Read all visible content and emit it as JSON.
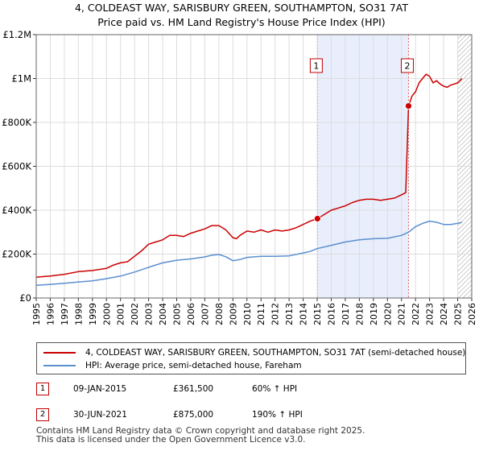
{
  "title": "4, COLDEAST WAY, SARISBURY GREEN, SOUTHAMPTON, SO31 7AT",
  "subtitle": "Price paid vs. HM Land Registry's House Price Index (HPI)",
  "colors": {
    "property": "#cc0000",
    "hpi": "#5b8fcf",
    "highlight": "#e8eefb",
    "marker_border": "#c00000",
    "grid": "#dddddd"
  },
  "legend": {
    "property_label": "4, COLDEAST WAY, SARISBURY GREEN, SOUTHAMPTON, SO31 7AT (semi-detached house)",
    "hpi_label": "HPI: Average price, semi-detached house, Fareham"
  },
  "sales": [
    {
      "id": "1",
      "date": "09-JAN-2015",
      "price": "£361,500",
      "hpi_change": "60% ↑ HPI"
    },
    {
      "id": "2",
      "date": "30-JUN-2021",
      "price": "£875,000",
      "hpi_change": "190% ↑ HPI"
    }
  ],
  "footer": {
    "line1": "Contains HM Land Registry data © Crown copyright and database right 2025.",
    "line2": "This data is licensed under the Open Government Licence v3.0."
  },
  "chart_data": {
    "type": "line",
    "xlim": [
      1995,
      2026
    ],
    "ylim": [
      0,
      1200000
    ],
    "x_ticks": [
      "1995",
      "1996",
      "1997",
      "1998",
      "1999",
      "2000",
      "2001",
      "2002",
      "2003",
      "2004",
      "2005",
      "2006",
      "2007",
      "2008",
      "2009",
      "2010",
      "2011",
      "2012",
      "2013",
      "2014",
      "2015",
      "2016",
      "2017",
      "2018",
      "2019",
      "2020",
      "2021",
      "2022",
      "2023",
      "2024",
      "2025",
      "2026"
    ],
    "y_ticks": [
      {
        "value": 0,
        "label": "£0"
      },
      {
        "value": 200000,
        "label": "£200K"
      },
      {
        "value": 400000,
        "label": "£400K"
      },
      {
        "value": 600000,
        "label": "£600K"
      },
      {
        "value": 800000,
        "label": "£800K"
      },
      {
        "value": 1000000,
        "label": "£1M"
      },
      {
        "value": 1200000,
        "label": "£1.2M"
      }
    ],
    "shaded_range": [
      2015.02,
      2021.5
    ],
    "hatched_from": 2025.0,
    "markers": [
      {
        "label": "1",
        "x": 2015.02,
        "y": 361500
      },
      {
        "label": "2",
        "x": 2021.5,
        "y": 875000
      }
    ],
    "series": [
      {
        "name": "4, COLDEAST WAY, SARISBURY GREEN, SOUTHAMPTON, SO31 7AT (semi-detached house)",
        "x": [
          1995,
          1996,
          1997,
          1998,
          1999,
          2000,
          2000.5,
          2001,
          2001.5,
          2002,
          2002.5,
          2003,
          2003.5,
          2004,
          2004.5,
          2005,
          2005.5,
          2006,
          2006.5,
          2007,
          2007.5,
          2008,
          2008.5,
          2009,
          2009.25,
          2009.5,
          2010,
          2010.5,
          2011,
          2011.5,
          2012,
          2012.5,
          2013,
          2013.5,
          2014,
          2014.5,
          2015.02,
          2015.5,
          2016,
          2016.5,
          2017,
          2017.5,
          2018,
          2018.5,
          2019,
          2019.5,
          2020,
          2020.5,
          2021,
          2021.3,
          2021.5,
          2021.75,
          2022,
          2022.25,
          2022.5,
          2022.75,
          2023,
          2023.25,
          2023.5,
          2023.75,
          2024,
          2024.25,
          2024.5,
          2024.75,
          2025,
          2025.3
        ],
        "values": [
          95000,
          100000,
          108000,
          120000,
          125000,
          135000,
          150000,
          160000,
          165000,
          190000,
          215000,
          245000,
          255000,
          265000,
          285000,
          285000,
          280000,
          295000,
          305000,
          315000,
          330000,
          330000,
          310000,
          275000,
          270000,
          285000,
          305000,
          300000,
          310000,
          300000,
          310000,
          305000,
          310000,
          320000,
          335000,
          350000,
          361500,
          380000,
          400000,
          410000,
          420000,
          435000,
          445000,
          450000,
          450000,
          445000,
          450000,
          455000,
          470000,
          480000,
          875000,
          920000,
          940000,
          980000,
          1000000,
          1020000,
          1010000,
          980000,
          990000,
          975000,
          965000,
          960000,
          970000,
          975000,
          980000,
          1000000
        ]
      },
      {
        "name": "HPI: Average price, semi-detached house, Fareham",
        "x": [
          1995,
          1996,
          1997,
          1998,
          1999,
          2000,
          2001,
          2002,
          2003,
          2004,
          2005,
          2006,
          2007,
          2007.5,
          2008,
          2008.5,
          2009,
          2009.5,
          2010,
          2011,
          2012,
          2013,
          2014,
          2014.5,
          2015,
          2016,
          2017,
          2018,
          2019,
          2020,
          2021,
          2021.5,
          2022,
          2022.5,
          2023,
          2023.5,
          2024,
          2024.5,
          2025,
          2025.3
        ],
        "values": [
          58000,
          62000,
          67000,
          73000,
          78000,
          88000,
          100000,
          118000,
          140000,
          160000,
          172000,
          178000,
          187000,
          195000,
          198000,
          188000,
          170000,
          175000,
          185000,
          190000,
          190000,
          192000,
          205000,
          212000,
          225000,
          240000,
          255000,
          265000,
          270000,
          272000,
          285000,
          300000,
          325000,
          340000,
          350000,
          345000,
          335000,
          335000,
          340000,
          345000
        ]
      }
    ]
  }
}
